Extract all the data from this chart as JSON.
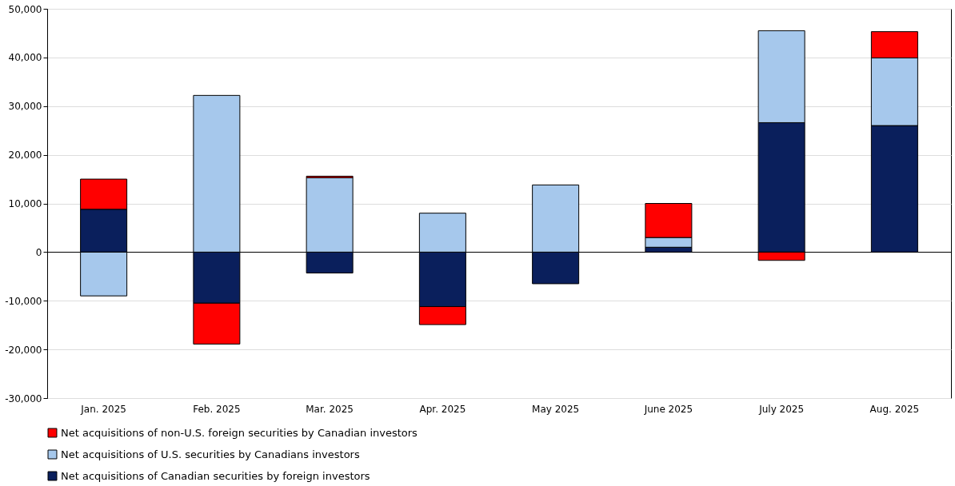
{
  "chart_data": {
    "type": "bar",
    "stacked": true,
    "categories": [
      "Jan. 2025",
      "Feb. 2025",
      "Mar. 2025",
      "Apr. 2025",
      "May 2025",
      "June 2025",
      "July 2025",
      "Aug. 2025"
    ],
    "series": [
      {
        "name": "Net acquisitions of Canadian securities by foreign investors",
        "color": "#0a1f5c",
        "values": [
          8800,
          -10500,
          -4300,
          -11200,
          -6500,
          1000,
          26600,
          26000
        ]
      },
      {
        "name": "Net acquisitions of U.S. securities by Canadians investors",
        "color": "#a6c8ec",
        "values": [
          -9000,
          32200,
          15300,
          8000,
          13800,
          2000,
          18900,
          13900
        ]
      },
      {
        "name": "Net acquisitions of non-U.S. foreign securities by Canadian investors",
        "color": "#ff0000",
        "values": [
          6200,
          -8400,
          300,
          -3700,
          null,
          7000,
          -1700,
          5400
        ]
      }
    ],
    "ylim": [
      -30000,
      50000
    ],
    "yticks": [
      {
        "value": -30000,
        "label": "-30,000"
      },
      {
        "value": -20000,
        "label": "-20,000"
      },
      {
        "value": -10000,
        "label": "-10,000"
      },
      0,
      {
        "value": 10000,
        "label": "10,000"
      },
      {
        "value": 20000,
        "label": "20,000"
      },
      {
        "value": 30000,
        "label": "30,000"
      },
      {
        "value": 40000,
        "label": "40,000"
      },
      {
        "value": 50000,
        "label": "50,000"
      }
    ],
    "grid": "y",
    "legend": "bottom"
  }
}
